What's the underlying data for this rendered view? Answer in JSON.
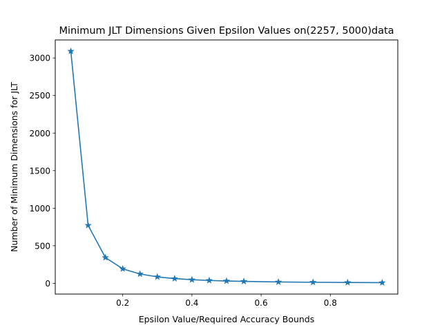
{
  "chart_data": {
    "type": "line",
    "title": "Minimum JLT Dimensions Given Epsilon Values on(2257, 5000)data",
    "xlabel": "Epsilon Value/Required Accuracy Bounds",
    "ylabel": "Number of Minimum Dimensions for JLT",
    "xlim": [
      0.005,
      0.995
    ],
    "ylim": [
      -143,
      3240
    ],
    "x_ticks": [
      0.2,
      0.4,
      0.6,
      0.8
    ],
    "x_tick_labels": [
      "0.2",
      "0.4",
      "0.6",
      "0.8"
    ],
    "y_ticks": [
      0,
      500,
      1000,
      1500,
      2000,
      2500,
      3000
    ],
    "y_tick_labels": [
      "0",
      "500",
      "1000",
      "1500",
      "2000",
      "2500",
      "3000"
    ],
    "grid": false,
    "legend": "none",
    "series": [
      {
        "color": "#1f77b4",
        "marker": "star",
        "x": [
          0.05,
          0.1,
          0.15,
          0.2,
          0.25,
          0.3,
          0.35,
          0.4,
          0.45,
          0.5,
          0.55,
          0.65,
          0.75,
          0.85,
          0.95
        ],
        "y": [
          3090,
          772,
          343,
          193,
          124,
          86,
          63,
          48,
          38,
          31,
          26,
          18,
          14,
          11,
          9
        ]
      }
    ]
  }
}
